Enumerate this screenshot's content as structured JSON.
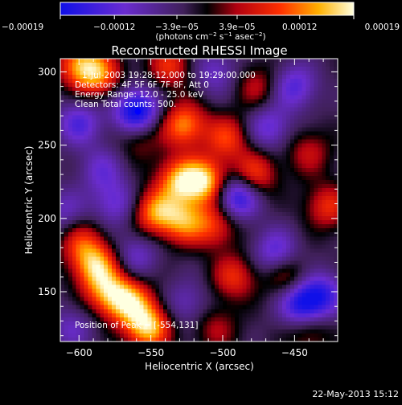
{
  "chart_data": {
    "type": "heatmap",
    "title": "Reconstructed RHESSI Image",
    "xlabel": "Heliocentric X (arcsec)",
    "ylabel": "Heliocentric Y (arcsec)",
    "xlim": [
      -613,
      -420
    ],
    "ylim": [
      116,
      309
    ],
    "x_ticks": [
      -600,
      -550,
      -500,
      -450
    ],
    "x_tick_labels": [
      "−600",
      "−550",
      "−500",
      "−450"
    ],
    "y_ticks": [
      150,
      200,
      250,
      300
    ],
    "y_tick_labels": [
      "150",
      "200",
      "250",
      "300"
    ],
    "colorbar": {
      "min": -0.00019,
      "max": 0.00019,
      "ticks": [
        -0.00019,
        -0.00012,
        -3.9e-05,
        3.9e-05,
        0.00012,
        0.00019
      ],
      "tick_labels": [
        "−0.00019",
        "−0.00012",
        "−3.9e−05",
        "3.9e−05",
        "0.00012",
        "0.00019"
      ],
      "units_main": "(photons cm",
      "units_sup1": "−2",
      "units_mid": " s",
      "units_sup2": "−1",
      "units_tail": " asec",
      "units_sup3": "−2",
      "units_end": ")"
    },
    "annotations": [
      "1-Jul-2003 19:28:12.000 to 19:29:00.000",
      "Detectors: 4F 5F 6F 7F 8F, Att 0",
      "Energy Range: 12.0 - 25.0 keV",
      "Clean    Total counts: 500."
    ],
    "peak_label": "Position of Peak = [",
    "peak_value": "-554,131]",
    "peak_position": [
      -554,
      131
    ],
    "peak_marker": [
      -559,
      273
    ],
    "blobs": [
      {
        "x": -552,
        "y": 126,
        "amp": 1.0
      },
      {
        "x": -512,
        "y": 225,
        "amp": 0.95
      },
      {
        "x": -530,
        "y": 226,
        "amp": 0.85
      },
      {
        "x": -547,
        "y": 204,
        "amp": 0.8
      },
      {
        "x": -527,
        "y": 198,
        "amp": 0.75
      },
      {
        "x": -588,
        "y": 167,
        "amp": 0.85
      },
      {
        "x": -580,
        "y": 149,
        "amp": 0.7
      },
      {
        "x": -565,
        "y": 143,
        "amp": 0.85
      },
      {
        "x": -598,
        "y": 183,
        "amp": 0.55
      },
      {
        "x": -600,
        "y": 305,
        "amp": 0.75
      },
      {
        "x": -586,
        "y": 298,
        "amp": 0.7
      },
      {
        "x": -527,
        "y": 264,
        "amp": 0.8
      },
      {
        "x": -537,
        "y": 304,
        "amp": 0.55
      },
      {
        "x": -497,
        "y": 255,
        "amp": 0.6
      },
      {
        "x": -478,
        "y": 230,
        "amp": 0.65
      },
      {
        "x": -505,
        "y": 195,
        "amp": 0.55
      },
      {
        "x": -492,
        "y": 160,
        "amp": 0.55
      },
      {
        "x": -455,
        "y": 160,
        "amp": 0.45
      },
      {
        "x": -427,
        "y": 208,
        "amp": 0.55
      },
      {
        "x": -440,
        "y": 245,
        "amp": 0.4
      },
      {
        "x": -476,
        "y": 290,
        "amp": 0.4
      },
      {
        "x": -558,
        "y": 255,
        "amp": 0.35
      },
      {
        "x": -505,
        "y": 125,
        "amp": 0.35
      },
      {
        "x": -440,
        "y": 123,
        "amp": 0.35
      },
      {
        "x": -560,
        "y": 273,
        "amp": -1.0
      },
      {
        "x": -600,
        "y": 265,
        "amp": -0.55
      },
      {
        "x": -584,
        "y": 233,
        "amp": -0.4
      },
      {
        "x": -575,
        "y": 210,
        "amp": -0.45
      },
      {
        "x": -490,
        "y": 215,
        "amp": -0.85
      },
      {
        "x": -463,
        "y": 177,
        "amp": -0.55
      },
      {
        "x": -445,
        "y": 142,
        "amp": -0.85
      },
      {
        "x": -430,
        "y": 148,
        "amp": -0.55
      },
      {
        "x": -468,
        "y": 262,
        "amp": -0.5
      },
      {
        "x": -450,
        "y": 290,
        "amp": -0.55
      },
      {
        "x": -505,
        "y": 300,
        "amp": -0.4
      },
      {
        "x": -560,
        "y": 175,
        "amp": -0.4
      },
      {
        "x": -610,
        "y": 205,
        "amp": -0.35
      },
      {
        "x": -525,
        "y": 142,
        "amp": -0.35
      },
      {
        "x": -605,
        "y": 125,
        "amp": -0.35
      }
    ]
  },
  "footer": {
    "date": "22-May-2013 15:12"
  },
  "colors": {
    "background": "#000000",
    "foreground": "#ffffff"
  }
}
